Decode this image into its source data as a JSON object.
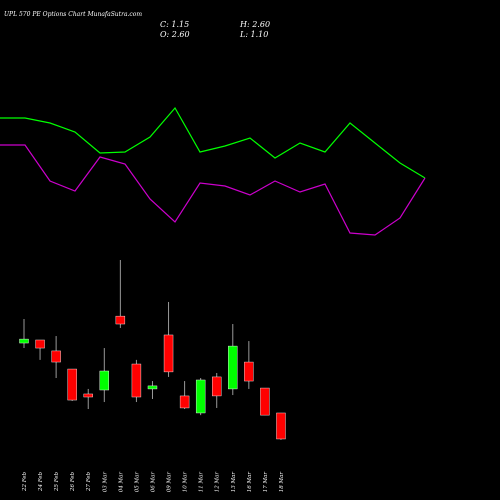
{
  "chart_data": [
    {
      "type": "candlestick",
      "title": "UPL 570 PE Options Chart MunafaSutra.com",
      "annotations": [
        "C: 1.15",
        "H: 2.60",
        "O: 2.60",
        "L: 1.10"
      ],
      "categories": [
        "22 Feb",
        "24 Feb",
        "25 Feb",
        "26 Feb",
        "27 Feb",
        "03 Mar",
        "04 Mar",
        "05 Mar",
        "06 Mar",
        "09 Mar",
        "10 Mar",
        "11 Mar",
        "12 Mar",
        "13 Mar",
        "16 Mar",
        "17 Mar",
        "18 Mar"
      ],
      "open": [
        6.5,
        6.67,
        6.06,
        5.05,
        3.66,
        3.88,
        8.0,
        5.33,
        3.94,
        6.95,
        3.55,
        2.6,
        4.61,
        3.94,
        5.44,
        3.99,
        2.6
      ],
      "high": [
        7.84,
        6.67,
        6.89,
        5.05,
        3.94,
        6.22,
        11.13,
        5.56,
        4.38,
        8.79,
        4.38,
        4.55,
        4.83,
        7.56,
        6.61,
        3.99,
        2.6
      ],
      "low": [
        6.22,
        5.56,
        4.55,
        3.27,
        2.82,
        3.21,
        7.34,
        3.21,
        3.38,
        4.61,
        2.82,
        2.48,
        2.88,
        3.6,
        3.94,
        2.48,
        1.1
      ],
      "close": [
        6.72,
        6.22,
        5.44,
        3.32,
        3.49,
        4.94,
        7.56,
        3.49,
        4.11,
        4.89,
        2.88,
        4.44,
        3.55,
        6.33,
        4.38,
        2.48,
        1.15
      ],
      "up_color": "#00ff00",
      "down_color": "#ff0000",
      "ylim": [
        0,
        12
      ]
    },
    {
      "type": "line",
      "series": [
        {
          "color": "#00ff00",
          "values": [
            182,
            182,
            177,
            168,
            147,
            148,
            163,
            192,
            148,
            154,
            162,
            142,
            157,
            148,
            177,
            157,
            137,
            122
          ]
        },
        {
          "color": "#cc00cc",
          "values": [
            155,
            155,
            119,
            109,
            143,
            136,
            101,
            78,
            117,
            114,
            105,
            119,
            108,
            116,
            67,
            65,
            82,
            122
          ]
        }
      ],
      "ylim": [
        0,
        200
      ]
    }
  ]
}
